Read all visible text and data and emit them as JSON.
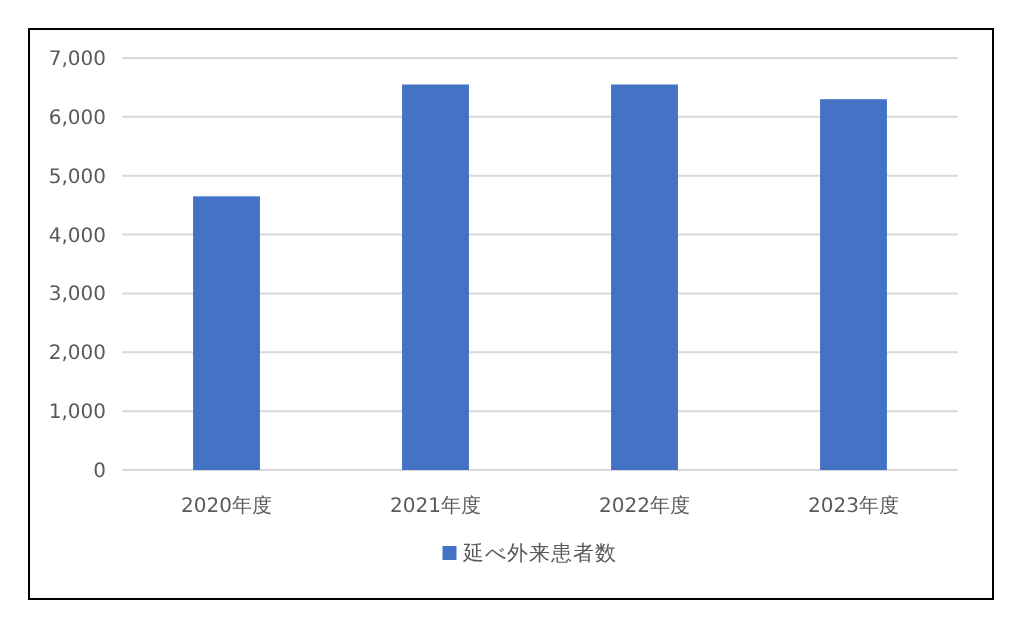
{
  "chart_data": {
    "type": "bar",
    "categories": [
      "2020年度",
      "2021年度",
      "2022年度",
      "2023年度"
    ],
    "series": [
      {
        "name": "延べ外来患者数",
        "color": "#4472c4",
        "values": [
          4650,
          6550,
          6550,
          6300
        ]
      }
    ],
    "ylim": [
      0,
      7000
    ],
    "yticks": [
      {
        "value": 0,
        "label": "0"
      },
      {
        "value": 1000,
        "label": "1,000"
      },
      {
        "value": 2000,
        "label": "2,000"
      },
      {
        "value": 3000,
        "label": "3,000"
      },
      {
        "value": 4000,
        "label": "4,000"
      },
      {
        "value": 5000,
        "label": "5,000"
      },
      {
        "value": 6000,
        "label": "6,000"
      },
      {
        "value": 7000,
        "label": "7,000"
      }
    ],
    "grid": "y",
    "legend": "bottom"
  }
}
